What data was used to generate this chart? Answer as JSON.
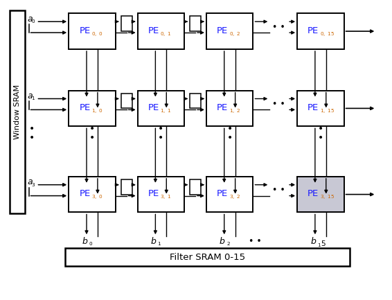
{
  "bg_color": "#ffffff",
  "pe_rows_idx": [
    0,
    1,
    3
  ],
  "pe_cols_idx": [
    0,
    1,
    2,
    15
  ],
  "a_labels": [
    "a",
    "a",
    "a"
  ],
  "a_subs": [
    "0",
    "1",
    "3"
  ],
  "b_labels": [
    "b",
    "b",
    "b",
    "b"
  ],
  "b_subs": [
    "0",
    "1",
    "2",
    "15"
  ],
  "window_sram_label": "Window SRAM",
  "filter_sram_label": "Filter SRAM 0-15",
  "pe_color": "#ffffff",
  "pe_last_color": "#c8c8d4",
  "black": "#000000",
  "orange": "#cc6600",
  "blue": "#1a1aff"
}
